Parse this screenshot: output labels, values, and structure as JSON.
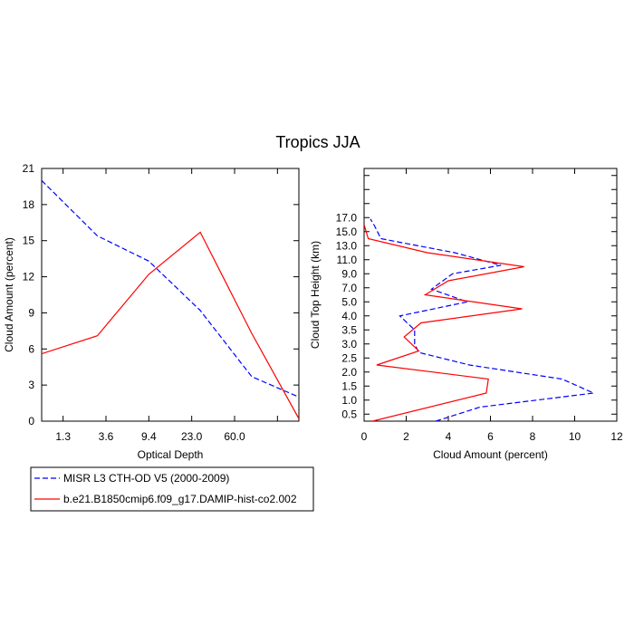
{
  "title": "Tropics JJA",
  "colors": {
    "obs": "#0000ff",
    "model": "#ff0000",
    "axis": "#000000"
  },
  "legend": {
    "entries": [
      {
        "label": "MISR L3 CTH-OD V5 (2000-2009)",
        "style": "dashed",
        "color": "#0000ff"
      },
      {
        "label": "b.e21.B1850cmip6.f09_g17.DAMIP-hist-co2.002",
        "style": "solid",
        "color": "#ff0000"
      }
    ]
  },
  "chart_data": [
    {
      "type": "line",
      "xlabel": "Optical Depth",
      "ylabel": "Cloud Amount (percent)",
      "xlim": [
        0,
        6
      ],
      "ylim": [
        0,
        21
      ],
      "xticks": [
        0.5,
        1.5,
        2.5,
        3.5,
        4.5,
        5.5
      ],
      "xticklabels": [
        "1.3",
        "3.6",
        "9.4",
        "23.0",
        "60.0"
      ],
      "xticklabel_positions": [
        0.5,
        1.5,
        2.5,
        3.5,
        4.5
      ],
      "yticks": [
        0,
        3,
        6,
        9,
        12,
        15,
        18,
        21
      ],
      "yticklabels": [
        "0",
        "3",
        "6",
        "9",
        "12",
        "15",
        "18",
        "21"
      ],
      "series": [
        {
          "name": "MISR L3 CTH-OD V5 (2000-2009)",
          "style": "dashed",
          "x": [
            0,
            1.3,
            2.5,
            3.7,
            4.9,
            6.0
          ],
          "y": [
            20.0,
            15.4,
            13.3,
            9.2,
            3.7,
            2.0
          ]
        },
        {
          "name": "b.e21.B1850cmip6.f09_g17.DAMIP-hist-co2.002",
          "style": "solid",
          "x": [
            0,
            1.3,
            2.5,
            3.7,
            4.9,
            6.0
          ],
          "y": [
            5.6,
            7.1,
            12.2,
            15.7,
            7.3,
            0.2
          ]
        }
      ]
    },
    {
      "type": "line",
      "xlabel": "Cloud Amount (percent)",
      "ylabel": "Cloud Top Height (km)",
      "xlim": [
        0,
        12
      ],
      "ylim": [
        0,
        18
      ],
      "xticks": [
        0,
        2,
        4,
        6,
        8,
        10,
        12
      ],
      "xticklabels": [
        "0",
        "2",
        "4",
        "6",
        "8",
        "10",
        "12"
      ],
      "yticks": [
        0.5,
        1.0,
        1.5,
        2.0,
        2.5,
        3.0,
        3.5,
        4.0,
        5.0,
        6.0,
        7.0,
        8.0,
        9.0,
        10.0,
        11.0,
        12.0,
        13.0,
        14.0,
        15.0,
        16.0,
        17.0
      ],
      "ytick_positions": [
        0.5,
        1.5,
        2.5,
        3.5,
        4.5,
        5.5,
        6.5,
        7.5,
        8.5,
        9.5,
        10.5,
        11.5,
        12.5,
        13.5,
        14.5,
        15.5,
        16.5,
        17.5
      ],
      "yticklabels": [
        "0.5",
        "1.0",
        "1.5",
        "2.0",
        "2.5",
        "3.0",
        "3.5",
        "4.0",
        "5.0",
        "7.0",
        "9.0",
        "11.0",
        "13.0",
        "15.0",
        "17.0"
      ],
      "ylabel_positions": [
        0.5,
        1.5,
        2.5,
        3.5,
        4.5,
        5.5,
        6.5,
        7.5,
        8.5,
        9.5,
        10.5,
        11.5,
        12.5,
        13.5,
        14.5
      ],
      "series": [
        {
          "name": "MISR L3 CTH-OD V5 (2000-2009)",
          "style": "dashed",
          "x": [
            3.4,
            5.5,
            10.9,
            9.4,
            5.0,
            2.6,
            2.4,
            2.4,
            1.7,
            4.9,
            3.2,
            4.2,
            6.5,
            4.3,
            0.8,
            0.5,
            0.3
          ],
          "y": [
            0.0,
            1.0,
            2.0,
            3.0,
            4.0,
            4.9,
            5.5,
            6.5,
            7.5,
            8.5,
            9.4,
            10.5,
            11.1,
            12.0,
            13.0,
            13.9,
            14.4
          ]
        },
        {
          "name": "b.e21.B1850cmip6.f09_g17.DAMIP-hist-co2.002",
          "style": "solid",
          "x": [
            0.4,
            5.8,
            5.9,
            0.6,
            2.6,
            1.9,
            2.7,
            7.5,
            2.9,
            4.0,
            7.6,
            3.0,
            0.2,
            0.0
          ],
          "y": [
            0.0,
            2.0,
            3.0,
            4.0,
            5.0,
            6.0,
            7.0,
            8.0,
            9.0,
            10.0,
            11.0,
            12.0,
            13.0,
            14.0
          ]
        }
      ]
    }
  ]
}
